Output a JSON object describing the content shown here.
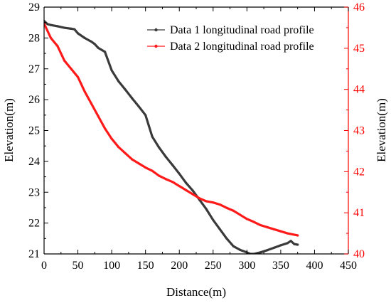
{
  "chart_data": {
    "type": "line",
    "xlabel": "Distance(m)",
    "ylabel_left": "Elevation(m)",
    "ylabel_right": "Elevation(m)",
    "xlim": [
      0,
      450
    ],
    "ylim_left": [
      21,
      29
    ],
    "ylim_right": [
      40,
      46
    ],
    "x_ticks": [
      "0",
      "50",
      "100",
      "150",
      "200",
      "250",
      "300",
      "350",
      "400",
      "450"
    ],
    "y_left_ticks": [
      "21",
      "22",
      "23",
      "24",
      "25",
      "26",
      "27",
      "28",
      "29"
    ],
    "y_right_ticks": [
      "40",
      "41",
      "42",
      "43",
      "44",
      "45",
      "46"
    ],
    "legend_position": "top-right",
    "grid": false,
    "colors": {
      "series1": "#3a3a3a",
      "series2": "#ff1a1a",
      "right_axis": "#ff0000"
    },
    "series": [
      {
        "name": "Data 1 longitudinal road profile",
        "axis": "left",
        "x": [
          0,
          5,
          10,
          20,
          30,
          40,
          45,
          50,
          60,
          70,
          75,
          80,
          90,
          100,
          110,
          120,
          130,
          140,
          150,
          155,
          160,
          170,
          180,
          190,
          200,
          210,
          220,
          230,
          240,
          250,
          260,
          270,
          280,
          290,
          300,
          305,
          310,
          320,
          330,
          340,
          350,
          360,
          365,
          370,
          375
        ],
        "y": [
          28.55,
          28.45,
          28.42,
          28.38,
          28.33,
          28.3,
          28.28,
          28.15,
          28.0,
          27.88,
          27.8,
          27.68,
          27.55,
          26.95,
          26.6,
          26.33,
          26.05,
          25.78,
          25.5,
          25.15,
          24.8,
          24.45,
          24.15,
          23.88,
          23.6,
          23.3,
          23.05,
          22.75,
          22.45,
          22.1,
          21.8,
          21.5,
          21.25,
          21.13,
          21.05,
          21.0,
          21.0,
          21.05,
          21.12,
          21.2,
          21.28,
          21.35,
          21.42,
          21.32,
          21.3
        ]
      },
      {
        "name": "Data 2 longitudinal road profile",
        "axis": "right",
        "x": [
          0,
          10,
          20,
          30,
          40,
          50,
          60,
          70,
          80,
          90,
          100,
          110,
          120,
          130,
          140,
          150,
          160,
          170,
          180,
          190,
          200,
          210,
          220,
          230,
          240,
          250,
          260,
          270,
          280,
          290,
          300,
          310,
          320,
          330,
          340,
          350,
          360,
          375
        ],
        "y": [
          45.6,
          45.25,
          45.05,
          44.7,
          44.5,
          44.3,
          43.95,
          43.65,
          43.35,
          43.05,
          42.8,
          42.6,
          42.45,
          42.3,
          42.2,
          42.1,
          42.02,
          41.9,
          41.82,
          41.75,
          41.65,
          41.55,
          41.45,
          41.35,
          41.28,
          41.25,
          41.2,
          41.12,
          41.05,
          40.95,
          40.85,
          40.78,
          40.7,
          40.65,
          40.6,
          40.55,
          40.5,
          40.45
        ]
      }
    ]
  }
}
